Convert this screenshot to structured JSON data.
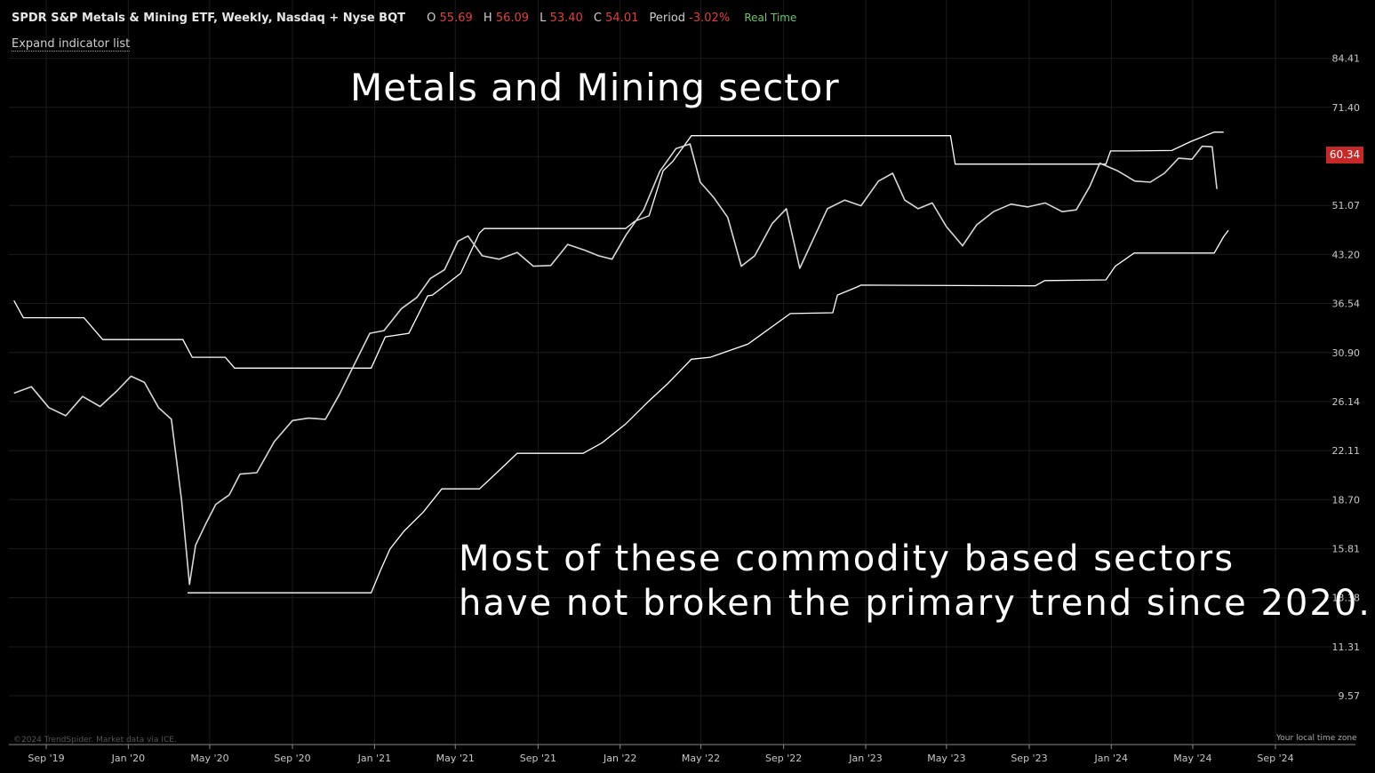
{
  "header": {
    "title": "SPDR S&P Metals & Mining ETF, Weekly, Nasdaq + Nyse BQT",
    "o_label": "O",
    "o_value": "55.69",
    "h_label": "H",
    "h_value": "56.09",
    "l_label": "L",
    "l_value": "53.40",
    "c_label": "C",
    "c_value": "54.01",
    "period_label": "Period",
    "period_value": "-3.02%",
    "realtime": "Real Time"
  },
  "expand_indicator_label": "Expand indicator list",
  "annotations": {
    "title": "Metals and Mining sector",
    "note_line1": "Most of these commodity based sectors",
    "note_line2": "have not broken the primary trend since 2020."
  },
  "current_price": "60.34",
  "copyright": "©2024 TrendSpider. Market data via ICE.",
  "timezone_label": "Your local time zone",
  "colors": {
    "background": "#000000",
    "line": "#ffffff",
    "price_badge": "#c62828",
    "down_value": "#e0413a",
    "realtime": "#6cc66c"
  },
  "chart_data": {
    "type": "line",
    "scale": "log",
    "title": "",
    "xlabel": "",
    "ylabel": "",
    "y_ticks": [
      "84.41",
      "71.40",
      "",
      "51.07",
      "43.20",
      "36.54",
      "30.90",
      "26.14",
      "22.11",
      "18.70",
      "15.81",
      "13.38",
      "11.31",
      "9.57"
    ],
    "y_tick_values": [
      84.41,
      71.4,
      60.34,
      51.07,
      43.2,
      36.54,
      30.9,
      26.14,
      22.11,
      18.7,
      15.81,
      13.38,
      11.31,
      9.57
    ],
    "ylim": [
      8.1,
      103.0
    ],
    "x_ticks": [
      "Sep '19",
      "Jan '20",
      "May '20",
      "Sep '20",
      "Jan '21",
      "May '21",
      "Sep '21",
      "Jan '22",
      "May '22",
      "Sep '22",
      "Jan '23",
      "May '23",
      "Sep '23",
      "Jan '24",
      "May '24",
      "Sep '24"
    ],
    "x_tick_dates": [
      "2019-09-01",
      "2020-01-01",
      "2020-05-01",
      "2020-09-01",
      "2021-01-01",
      "2021-05-01",
      "2021-09-01",
      "2022-01-01",
      "2022-05-01",
      "2022-09-01",
      "2023-01-01",
      "2023-05-01",
      "2023-09-01",
      "2024-01-01",
      "2024-05-01",
      "2024-09-01"
    ],
    "series": [
      {
        "role": "price",
        "points": [
          [
            "2019-07-15",
            26.9
          ],
          [
            "2019-08-10",
            27.5
          ],
          [
            "2019-09-05",
            25.6
          ],
          [
            "2019-09-30",
            24.9
          ],
          [
            "2019-10-25",
            26.6
          ],
          [
            "2019-11-20",
            25.7
          ],
          [
            "2019-12-15",
            27.1
          ],
          [
            "2020-01-05",
            28.5
          ],
          [
            "2020-01-25",
            27.9
          ],
          [
            "2020-02-15",
            25.6
          ],
          [
            "2020-03-05",
            24.6
          ],
          [
            "2020-03-20",
            18.7
          ],
          [
            "2020-04-01",
            14.0
          ],
          [
            "2020-04-10",
            16.0
          ],
          [
            "2020-04-25",
            17.2
          ],
          [
            "2020-05-10",
            18.4
          ],
          [
            "2020-05-30",
            19.0
          ],
          [
            "2020-06-15",
            20.4
          ],
          [
            "2020-07-10",
            20.5
          ],
          [
            "2020-08-05",
            22.8
          ],
          [
            "2020-09-01",
            24.5
          ],
          [
            "2020-09-25",
            24.7
          ],
          [
            "2020-10-20",
            24.6
          ],
          [
            "2020-11-10",
            26.8
          ],
          [
            "2020-12-05",
            30.1
          ],
          [
            "2020-12-25",
            33.0
          ],
          [
            "2021-01-15",
            33.3
          ],
          [
            "2021-02-10",
            35.9
          ],
          [
            "2021-03-05",
            37.3
          ],
          [
            "2021-03-25",
            39.8
          ],
          [
            "2021-04-15",
            41.0
          ],
          [
            "2021-05-05",
            45.2
          ],
          [
            "2021-05-20",
            46.0
          ],
          [
            "2021-06-10",
            43.0
          ],
          [
            "2021-07-05",
            42.5
          ],
          [
            "2021-08-01",
            43.5
          ],
          [
            "2021-08-25",
            41.5
          ],
          [
            "2021-09-20",
            41.6
          ],
          [
            "2021-10-15",
            44.7
          ],
          [
            "2021-11-10",
            43.8
          ],
          [
            "2021-11-30",
            43.0
          ],
          [
            "2021-12-20",
            42.5
          ],
          [
            "2022-01-10",
            46.2
          ],
          [
            "2022-02-05",
            50.3
          ],
          [
            "2022-03-01",
            57.4
          ],
          [
            "2022-03-25",
            62.0
          ],
          [
            "2022-04-15",
            63.0
          ],
          [
            "2022-04-30",
            55.3
          ],
          [
            "2022-05-20",
            52.5
          ],
          [
            "2022-06-10",
            49.0
          ],
          [
            "2022-06-30",
            41.5
          ],
          [
            "2022-07-20",
            43.0
          ],
          [
            "2022-08-15",
            48.0
          ],
          [
            "2022-09-05",
            50.5
          ],
          [
            "2022-09-25",
            41.2
          ],
          [
            "2022-10-15",
            45.5
          ],
          [
            "2022-11-05",
            50.5
          ],
          [
            "2022-12-01",
            52.0
          ],
          [
            "2022-12-25",
            51.0
          ],
          [
            "2023-01-20",
            55.5
          ],
          [
            "2023-02-10",
            57.0
          ],
          [
            "2023-02-28",
            52.0
          ],
          [
            "2023-03-20",
            50.5
          ],
          [
            "2023-04-10",
            51.5
          ],
          [
            "2023-05-01",
            47.5
          ],
          [
            "2023-05-25",
            44.5
          ],
          [
            "2023-06-15",
            47.8
          ],
          [
            "2023-07-10",
            50.0
          ],
          [
            "2023-08-05",
            51.3
          ],
          [
            "2023-08-30",
            50.8
          ],
          [
            "2023-09-25",
            51.5
          ],
          [
            "2023-10-20",
            50.0
          ],
          [
            "2023-11-10",
            50.3
          ],
          [
            "2023-11-30",
            54.5
          ],
          [
            "2023-12-15",
            59.0
          ],
          [
            "2024-01-10",
            57.5
          ],
          [
            "2024-02-05",
            55.5
          ],
          [
            "2024-02-28",
            55.3
          ],
          [
            "2024-03-20",
            57.0
          ],
          [
            "2024-04-10",
            60.0
          ],
          [
            "2024-04-30",
            59.8
          ],
          [
            "2024-05-15",
            62.5
          ],
          [
            "2024-05-30",
            62.4
          ],
          [
            "2024-06-06",
            54.01
          ]
        ]
      },
      {
        "role": "upper-band",
        "points": [
          [
            "2020-03-29",
            13.6
          ],
          [
            "2020-12-27",
            13.6
          ],
          [
            "2021-01-10",
            14.7
          ],
          [
            "2021-01-24",
            15.8
          ],
          [
            "2021-02-14",
            16.8
          ],
          [
            "2021-03-14",
            17.9
          ],
          [
            "2021-04-11",
            19.4
          ],
          [
            "2021-06-06",
            19.4
          ],
          [
            "2021-07-04",
            20.6
          ],
          [
            "2021-08-01",
            21.9
          ],
          [
            "2021-11-07",
            21.9
          ],
          [
            "2021-12-05",
            22.7
          ],
          [
            "2022-01-09",
            24.2
          ],
          [
            "2022-02-13",
            26.2
          ],
          [
            "2022-03-13",
            27.8
          ],
          [
            "2022-04-17",
            30.2
          ],
          [
            "2022-05-15",
            30.4
          ],
          [
            "2022-07-10",
            31.8
          ],
          [
            "2022-09-11",
            35.3
          ],
          [
            "2022-11-13",
            35.4
          ],
          [
            "2022-11-20",
            37.6
          ],
          [
            "2022-12-18",
            38.6
          ],
          [
            "2022-12-25",
            38.9
          ],
          [
            "2023-09-10",
            38.8
          ],
          [
            "2023-09-24",
            39.5
          ],
          [
            "2023-12-24",
            39.6
          ],
          [
            "2024-01-07",
            41.5
          ],
          [
            "2024-02-04",
            43.4
          ],
          [
            "2024-06-02",
            43.4
          ],
          [
            "2024-06-16",
            45.9
          ],
          [
            "2024-06-23",
            46.9
          ]
        ]
      },
      {
        "role": "lower-band",
        "points": [
          [
            "2019-07-15",
            36.9
          ],
          [
            "2019-07-29",
            34.8
          ],
          [
            "2019-10-27",
            34.8
          ],
          [
            "2019-11-24",
            32.3
          ],
          [
            "2020-03-22",
            32.3
          ],
          [
            "2020-04-05",
            30.4
          ],
          [
            "2020-05-24",
            30.4
          ],
          [
            "2020-06-07",
            29.3
          ],
          [
            "2020-12-27",
            29.3
          ],
          [
            "2021-01-17",
            32.6
          ],
          [
            "2021-02-21",
            33.0
          ],
          [
            "2021-03-21",
            37.5
          ],
          [
            "2021-03-28",
            37.6
          ],
          [
            "2021-05-09",
            40.5
          ],
          [
            "2021-06-06",
            46.5
          ],
          [
            "2021-06-13",
            47.2
          ],
          [
            "2022-01-09",
            47.2
          ],
          [
            "2022-01-23",
            48.4
          ],
          [
            "2022-02-13",
            49.3
          ],
          [
            "2022-03-06",
            57.5
          ],
          [
            "2022-03-20",
            59.3
          ],
          [
            "2022-04-17",
            64.8
          ],
          [
            "2023-05-07",
            64.8
          ],
          [
            "2023-05-14",
            58.8
          ],
          [
            "2023-12-24",
            58.8
          ],
          [
            "2023-12-31",
            61.5
          ],
          [
            "2024-01-28",
            61.5
          ],
          [
            "2024-03-31",
            61.6
          ],
          [
            "2024-04-28",
            63.5
          ],
          [
            "2024-06-02",
            65.6
          ],
          [
            "2024-06-16",
            65.6
          ]
        ]
      }
    ],
    "grid": true,
    "legend": "none"
  }
}
